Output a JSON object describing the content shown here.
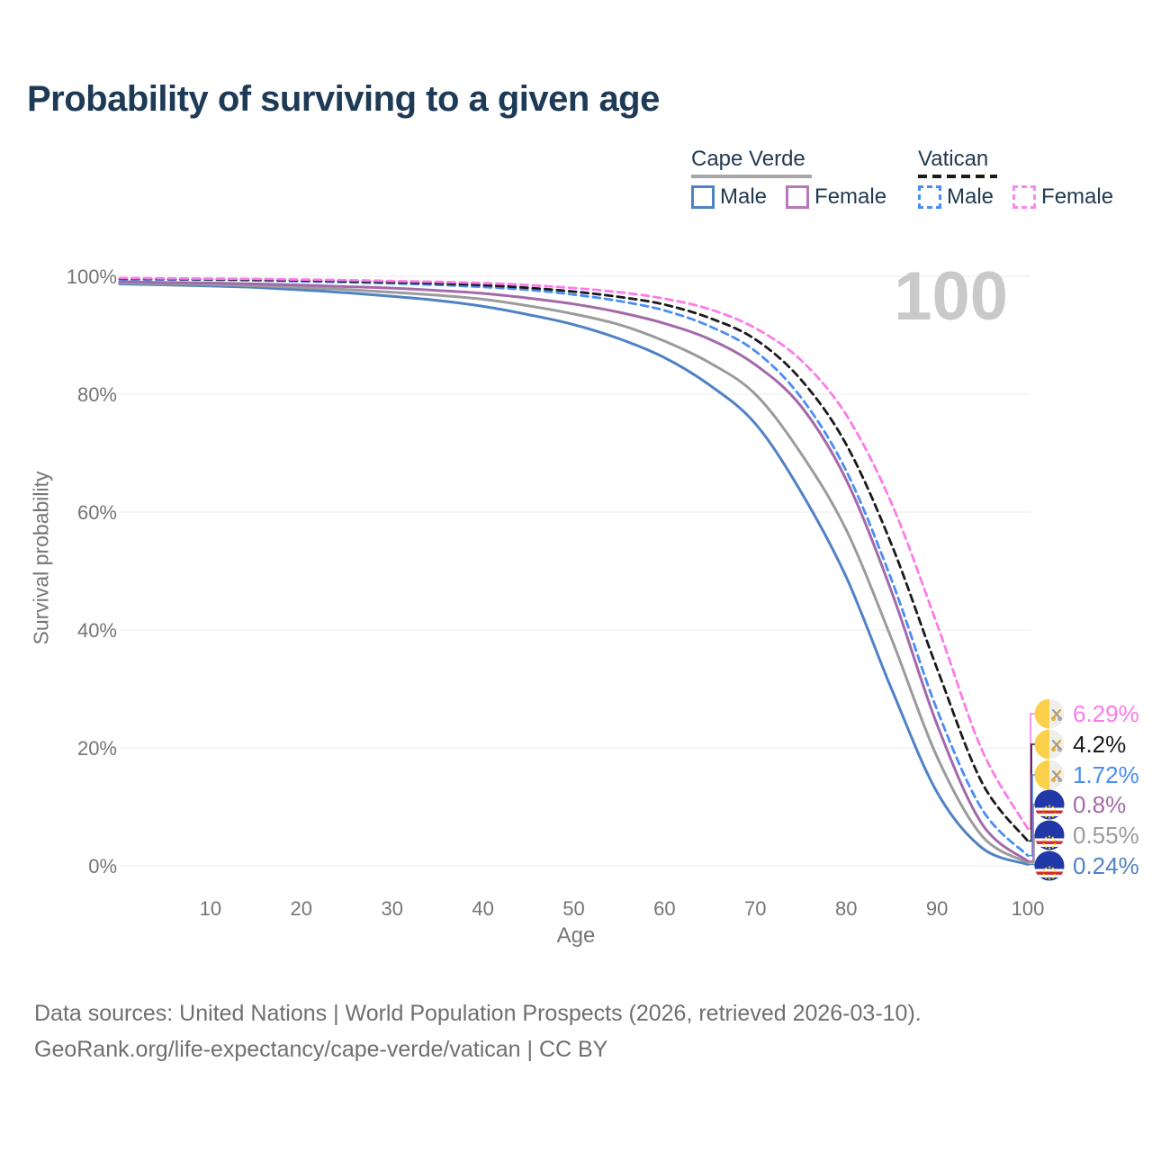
{
  "title": "Probability of surviving to a given age",
  "watermark": "100",
  "legend": {
    "groups": [
      {
        "name": "Cape Verde",
        "line_style": "solid",
        "underline_color": "#a6a6a6",
        "items": [
          {
            "label": "Male",
            "color": "#4f81c4"
          },
          {
            "label": "Female",
            "color": "#b678b6"
          }
        ]
      },
      {
        "name": "Vatican",
        "line_style": "dashed",
        "underline_color": "#1a1a1a",
        "items": [
          {
            "label": "Male",
            "color": "#4a8df5"
          },
          {
            "label": "Female",
            "color": "#fb87ee"
          }
        ]
      }
    ]
  },
  "axes": {
    "y_title": "Survival probability",
    "x_title": "Age",
    "y_ticks": [
      {
        "label": "100%",
        "value": 100
      },
      {
        "label": "80%",
        "value": 80
      },
      {
        "label": "60%",
        "value": 60
      },
      {
        "label": "40%",
        "value": 40
      },
      {
        "label": "20%",
        "value": 20
      },
      {
        "label": "0%",
        "value": 0
      }
    ],
    "x_ticks": [
      {
        "label": "10",
        "value": 10
      },
      {
        "label": "20",
        "value": 20
      },
      {
        "label": "30",
        "value": 30
      },
      {
        "label": "40",
        "value": 40
      },
      {
        "label": "50",
        "value": 50
      },
      {
        "label": "60",
        "value": 60
      },
      {
        "label": "70",
        "value": 70
      },
      {
        "label": "80",
        "value": 80
      },
      {
        "label": "90",
        "value": 90
      },
      {
        "label": "100",
        "value": 100
      }
    ]
  },
  "chart_data": {
    "type": "line",
    "title": "Probability of surviving to a given age",
    "xlabel": "Age",
    "ylabel": "Survival probability",
    "xlim": [
      0,
      100
    ],
    "ylim": [
      0,
      100
    ],
    "grid": "horizontal",
    "legend_position": "top-right",
    "ages": [
      0,
      5,
      10,
      15,
      20,
      25,
      30,
      35,
      40,
      45,
      50,
      55,
      60,
      65,
      70,
      75,
      80,
      85,
      90,
      95,
      100
    ],
    "series": [
      {
        "name": "Cape Verde — Male",
        "country": "Cape Verde",
        "sex": "Male",
        "color": "#4f81c4",
        "dash": false,
        "values": [
          98.7,
          98.55,
          98.35,
          98.1,
          97.7,
          97.2,
          96.6,
          95.9,
          94.9,
          93.5,
          91.8,
          89.4,
          86.2,
          81.5,
          75.0,
          63.5,
          49.0,
          30.0,
          12.5,
          3.0,
          0.24
        ]
      },
      {
        "name": "Cape Verde — Total",
        "country": "Cape Verde",
        "sex": "Both",
        "color": "#9b9b9b",
        "dash": false,
        "values": [
          98.9,
          98.75,
          98.6,
          98.4,
          98.1,
          97.75,
          97.3,
          96.8,
          96.1,
          95.0,
          93.6,
          91.8,
          89.0,
          85.3,
          80.0,
          70.0,
          57.0,
          38.5,
          18.5,
          5.0,
          0.55
        ]
      },
      {
        "name": "Cape Verde — Female",
        "country": "Cape Verde",
        "sex": "Female",
        "color": "#a369a9",
        "dash": false,
        "values": [
          99.1,
          98.95,
          98.85,
          98.7,
          98.5,
          98.25,
          98.0,
          97.6,
          97.1,
          96.3,
          95.3,
          93.9,
          92.0,
          89.3,
          85.0,
          78.0,
          65.5,
          46.5,
          24.0,
          7.0,
          0.8
        ]
      },
      {
        "name": "Vatican — Male",
        "country": "Vatican",
        "sex": "Male",
        "color": "#4a8df5",
        "dash": true,
        "values": [
          99.5,
          99.45,
          99.4,
          99.3,
          99.15,
          99.0,
          98.8,
          98.55,
          98.2,
          97.7,
          96.9,
          95.8,
          94.2,
          91.5,
          87.3,
          79.5,
          67.0,
          48.5,
          26.5,
          9.5,
          1.72
        ]
      },
      {
        "name": "Vatican — Total",
        "country": "Vatican",
        "sex": "Both",
        "color": "#1a1a1a",
        "dash": true,
        "values": [
          99.6,
          99.55,
          99.5,
          99.4,
          99.3,
          99.15,
          99.0,
          98.8,
          98.5,
          98.05,
          97.4,
          96.5,
          95.2,
          92.9,
          89.3,
          82.5,
          71.5,
          54.5,
          33.5,
          14.0,
          4.2
        ]
      },
      {
        "name": "Vatican — Female",
        "country": "Vatican",
        "sex": "Female",
        "color": "#fb7ce8",
        "dash": true,
        "values": [
          99.7,
          99.65,
          99.6,
          99.55,
          99.45,
          99.35,
          99.2,
          99.05,
          98.85,
          98.5,
          98.0,
          97.3,
          96.2,
          94.4,
          91.2,
          85.8,
          76.5,
          61.5,
          41.0,
          19.5,
          6.29
        ]
      }
    ],
    "end_labels": [
      {
        "text": "6.29%",
        "color": "#fb7ce8",
        "flag": "vatican",
        "series": "Vatican — Female"
      },
      {
        "text": "4.2%",
        "color": "#1a1a1a",
        "flag": "vatican",
        "series": "Vatican — Total"
      },
      {
        "text": "1.72%",
        "color": "#4a8df5",
        "flag": "vatican",
        "series": "Vatican — Male"
      },
      {
        "text": "0.8%",
        "color": "#a369a9",
        "flag": "cape-verde",
        "series": "Cape Verde — Female"
      },
      {
        "text": "0.55%",
        "color": "#9b9b9b",
        "flag": "cape-verde",
        "series": "Cape Verde — Total"
      },
      {
        "text": "0.24%",
        "color": "#4f81c4",
        "flag": "cape-verde",
        "series": "Cape Verde — Male"
      }
    ]
  },
  "footer": {
    "line1": "Data sources: United Nations | World Population Prospects (2026, retrieved 2026-03-10).",
    "line2": "GeoRank.org/life-expectancy/cape-verde/vatican | CC BY"
  }
}
